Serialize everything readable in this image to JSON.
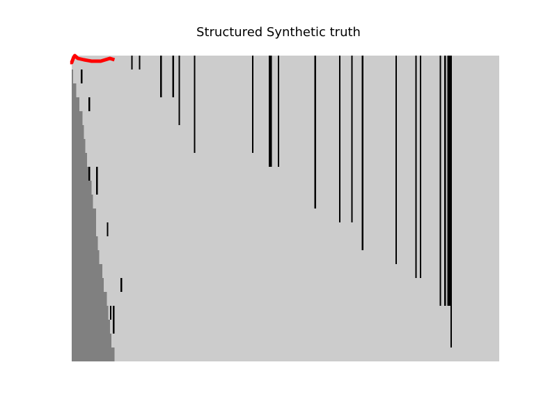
{
  "chart_data": {
    "type": "heatmap",
    "title": "Structured Synthetic truth",
    "xlabel": "",
    "ylabel": "",
    "n_cols": 280,
    "n_rows": 22,
    "axes_visible": false,
    "grid": false,
    "colors": {
      "background": "#cccccc",
      "observed": "#808080",
      "event": "#000000",
      "overlay_line": "#ff0000"
    },
    "observed_prefix_by_row": [
      0,
      1,
      3,
      5,
      7,
      8,
      9,
      10,
      12,
      13,
      14,
      16,
      16,
      17,
      18,
      20,
      21,
      23,
      24,
      25,
      26,
      28
    ],
    "events": [
      {
        "col": 6,
        "rows": [
          1
        ]
      },
      {
        "col": 11,
        "rows": [
          3
        ]
      },
      {
        "col": 11,
        "rows": [
          8
        ]
      },
      {
        "col": 16,
        "rows": [
          8,
          9
        ]
      },
      {
        "col": 23,
        "rows": [
          12
        ]
      },
      {
        "col": 32,
        "rows": [
          16
        ]
      },
      {
        "col": 25,
        "rows": [
          18
        ]
      },
      {
        "col": 27,
        "rows": [
          18,
          19
        ]
      },
      {
        "col": 39,
        "rows": [
          0
        ]
      },
      {
        "col": 44,
        "rows": [
          0
        ]
      },
      {
        "col": 58,
        "rows": [
          0,
          1,
          2
        ]
      },
      {
        "col": 66,
        "rows": [
          0,
          1,
          2
        ]
      },
      {
        "col": 70,
        "rows": [
          0,
          1,
          2,
          3,
          4
        ]
      },
      {
        "col": 80,
        "rows": [
          0,
          1,
          2,
          3,
          4,
          5,
          6
        ]
      },
      {
        "col": 118,
        "rows": [
          0,
          1,
          2,
          3,
          4,
          5,
          6
        ]
      },
      {
        "col": 129,
        "rows": [
          0,
          1,
          2,
          3,
          4,
          5,
          6,
          7
        ]
      },
      {
        "col": 130,
        "rows": [
          0,
          1,
          2,
          3,
          4,
          5,
          6,
          7
        ]
      },
      {
        "col": 135,
        "rows": [
          0,
          1,
          2,
          3,
          4,
          5,
          6,
          7
        ]
      },
      {
        "col": 159,
        "rows": [
          0,
          1,
          2,
          3,
          4,
          5,
          6,
          7,
          8,
          9,
          10
        ]
      },
      {
        "col": 175,
        "rows": [
          0,
          1,
          2,
          3,
          4,
          5,
          6,
          7,
          8,
          9,
          10,
          11
        ]
      },
      {
        "col": 183,
        "rows": [
          0,
          1,
          2,
          3,
          4,
          5,
          6,
          7,
          8,
          9,
          10,
          11
        ]
      },
      {
        "col": 190,
        "rows": [
          0,
          1,
          2,
          3,
          4,
          5,
          6,
          7,
          8,
          9,
          10,
          11,
          12,
          13
        ]
      },
      {
        "col": 212,
        "rows": [
          0,
          1,
          2,
          3,
          4,
          5,
          6,
          7,
          8,
          9,
          10,
          11,
          12,
          13,
          14
        ]
      },
      {
        "col": 225,
        "rows": [
          0,
          1,
          2,
          3,
          4,
          5,
          6,
          7,
          8,
          9,
          10,
          11,
          12,
          13,
          14,
          15
        ]
      },
      {
        "col": 228,
        "rows": [
          0,
          1,
          2,
          3,
          4,
          5,
          6,
          7,
          8,
          9,
          10,
          11,
          12,
          13,
          14,
          15
        ]
      },
      {
        "col": 241,
        "rows": [
          0,
          1,
          2,
          3,
          4,
          5,
          6,
          7,
          8,
          9,
          10,
          11,
          12,
          13,
          14,
          15,
          16,
          17
        ]
      },
      {
        "col": 244,
        "rows": [
          0,
          1,
          2,
          3,
          4,
          5,
          6,
          7,
          8,
          9,
          10,
          11,
          12,
          13,
          14,
          15,
          16,
          17
        ]
      },
      {
        "col": 246,
        "rows": [
          0,
          1,
          2,
          3,
          4,
          5,
          6,
          7,
          8,
          9,
          10,
          11,
          12,
          13,
          14,
          15,
          16,
          17
        ]
      },
      {
        "col": 247,
        "rows": [
          0,
          1,
          2,
          3,
          4,
          5,
          6,
          7,
          8,
          9,
          10,
          11,
          12,
          13,
          14,
          15,
          16,
          17
        ]
      },
      {
        "col": 248,
        "rows": [
          0,
          1,
          2,
          3,
          4,
          5,
          6,
          7,
          8,
          9,
          10,
          11,
          12,
          13,
          14,
          15,
          16,
          17,
          18,
          19,
          20
        ]
      }
    ],
    "overlay_line": {
      "row": 0.4,
      "points": [
        [
          -1,
          0.5
        ],
        [
          0,
          0.5
        ],
        [
          1,
          0.2
        ],
        [
          2,
          0.0
        ],
        [
          4,
          0.2
        ],
        [
          8,
          0.3
        ],
        [
          13,
          0.4
        ],
        [
          19,
          0.4
        ],
        [
          22,
          0.3
        ],
        [
          25,
          0.2
        ],
        [
          28,
          0.3
        ]
      ]
    }
  }
}
